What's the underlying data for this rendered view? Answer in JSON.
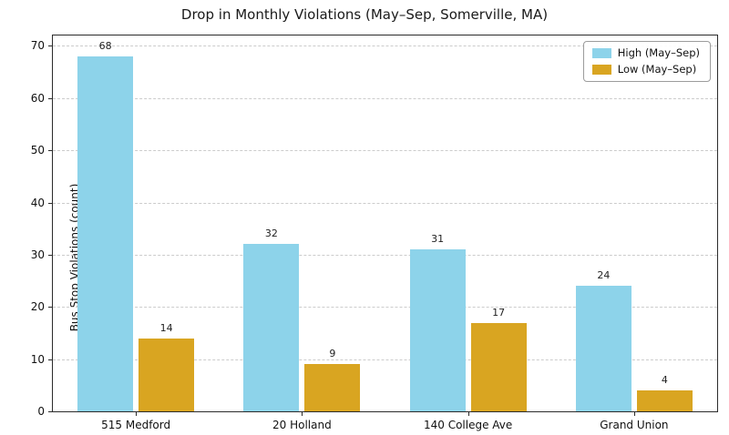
{
  "chart_data": {
    "type": "bar",
    "title": "Drop in Monthly Violations (May–Sep, Somerville, MA)",
    "ylabel": "Bus Stop Violations (count)",
    "xlabel": "",
    "categories": [
      "515 Medford",
      "20 Holland",
      "140 College Ave",
      "Grand Union"
    ],
    "series": [
      {
        "name": "High (May–Sep)",
        "color": "#8DD3EA",
        "values": [
          68,
          32,
          31,
          24
        ]
      },
      {
        "name": "Low (May–Sep)",
        "color": "#D9A521",
        "values": [
          14,
          9,
          17,
          4
        ]
      }
    ],
    "ylim": [
      0,
      72
    ],
    "yticks": [
      0,
      10,
      20,
      30,
      40,
      50,
      60,
      70
    ],
    "grid": "dashed-horizontal",
    "legend_position": "upper-right"
  }
}
